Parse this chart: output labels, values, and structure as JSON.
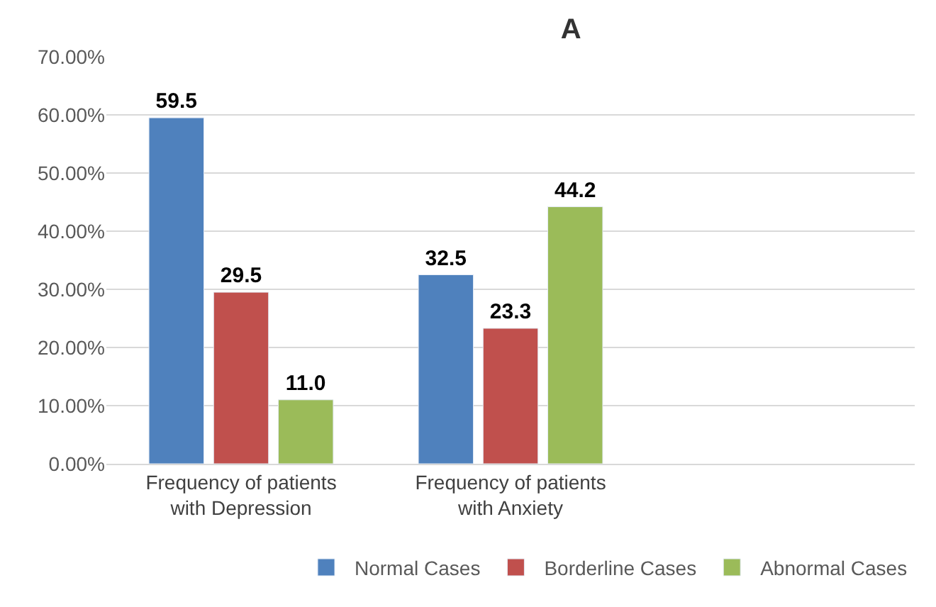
{
  "chart_data": {
    "type": "bar",
    "title": "A",
    "categories": [
      "Frequency of patients with Depression",
      "Frequency of patients with Anxiety",
      null
    ],
    "series": [
      {
        "name": "Normal Cases",
        "color": "#4f81bd",
        "values": [
          59.5,
          32.5,
          null
        ],
        "value_labels": [
          "59.5",
          "32.5",
          null
        ]
      },
      {
        "name": "Borderline Cases",
        "color": "#c0504d",
        "values": [
          29.5,
          23.3,
          null
        ],
        "value_labels": [
          "29.5",
          "23.3",
          null
        ]
      },
      {
        "name": "Abnormal Cases",
        "color": "#9bbb59",
        "values": [
          11.0,
          44.2,
          null
        ],
        "value_labels": [
          "11.0",
          "44.2",
          null
        ]
      }
    ],
    "ylim": [
      0,
      70
    ],
    "yticks": [
      {
        "value": 0,
        "label": "0.00%"
      },
      {
        "value": 10,
        "label": "10.00%"
      },
      {
        "value": 20,
        "label": "20.00%"
      },
      {
        "value": 30,
        "label": "30.00%"
      },
      {
        "value": 40,
        "label": "40.00%"
      },
      {
        "value": 50,
        "label": "50.00%"
      },
      {
        "value": 60,
        "label": "60.00%"
      },
      {
        "value": 70,
        "label": "70.00%"
      }
    ],
    "grid": "y",
    "legend": "bottom"
  }
}
